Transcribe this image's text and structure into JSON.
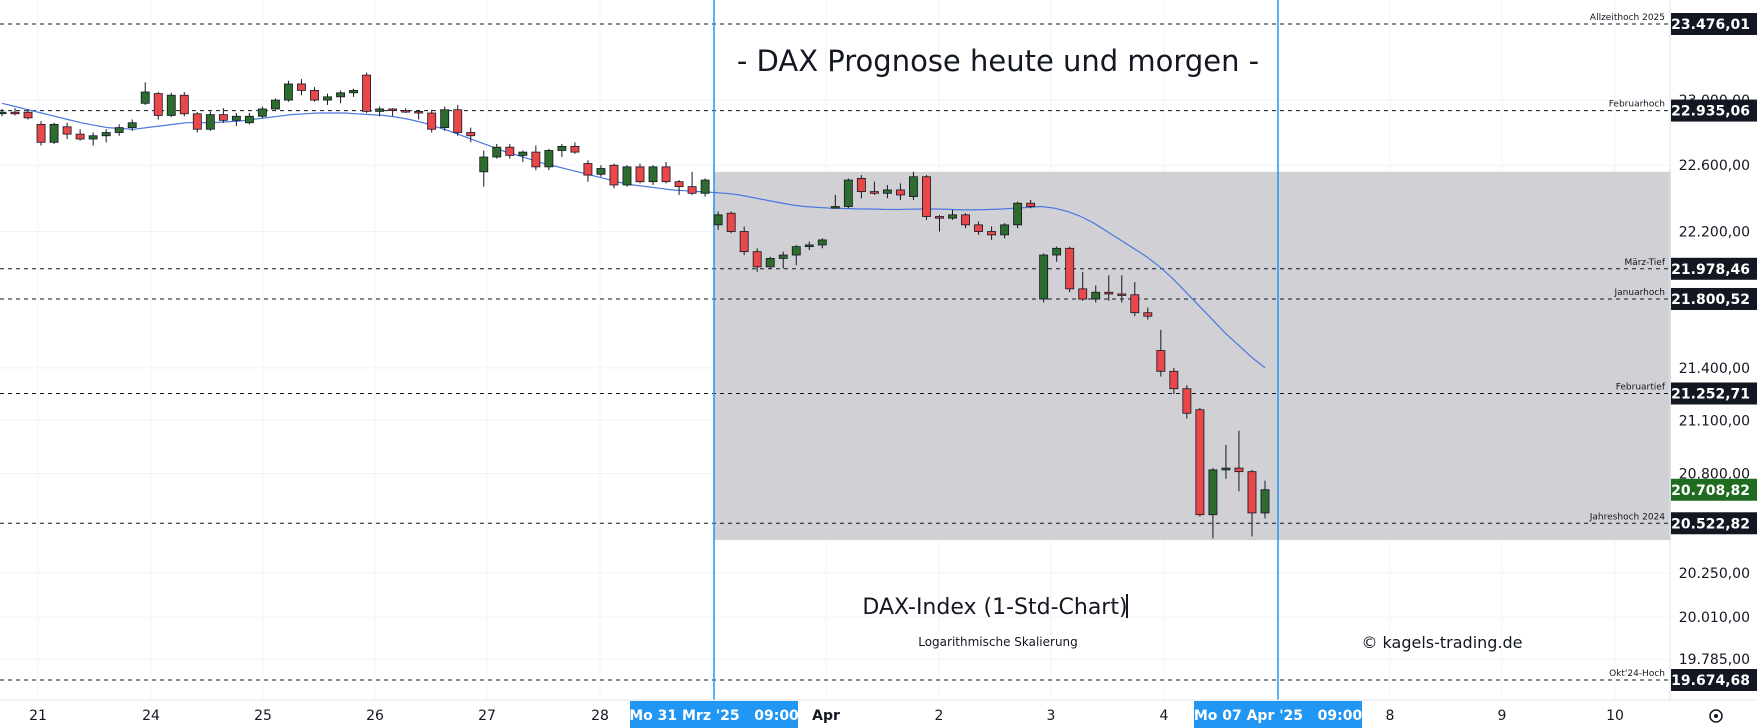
{
  "chart_data": {
    "type": "candlestick",
    "title": "- DAX Prognose heute und morgen -",
    "subtitle": "DAX-Index (1-Std-Chart)",
    "scale_note": "Logarithmische Skalierung",
    "credit": "© kagels-trading.de",
    "y_scale": "log",
    "ylim": [
      19550,
      23700
    ],
    "grid": true,
    "x_ticks": [
      "21",
      "24",
      "25",
      "26",
      "27",
      "28",
      "Apr",
      "2",
      "3",
      "4",
      "8",
      "9",
      "10"
    ],
    "date_markers": [
      {
        "label": "Mo 31 Mrz '25   09:00"
      },
      {
        "label": "Mo 07 Apr '25   09:00"
      }
    ],
    "y_ticks": [
      "23.000,00",
      "22.600,00",
      "22.200,00",
      "21.400,00",
      "21.100,00",
      "20.800,00",
      "20.250,00",
      "20.010,00",
      "19.785,00"
    ],
    "levels": [
      {
        "name": "Allzeithoch 2025",
        "value": 23476.01,
        "label": "23.476,01"
      },
      {
        "name": "Februarhoch",
        "value": 22935.06,
        "label": "22.935,06"
      },
      {
        "name": "März-Tief",
        "value": 21978.46,
        "label": "21.978,46"
      },
      {
        "name": "Januarhoch",
        "value": 21800.52,
        "label": "21.800,52"
      },
      {
        "name": "Februartief",
        "value": 21252.71,
        "label": "21.252,71"
      },
      {
        "name": "Jahreshoch 2024",
        "value": 20522.82,
        "label": "20.522,82"
      },
      {
        "name": "Okt'24-Hoch",
        "value": 19674.68,
        "label": "19.674,68"
      }
    ],
    "last_price": {
      "value": 20708.82,
      "label": "20.708,82"
    },
    "range_box": {
      "high": 22560,
      "low": 20430
    },
    "colors": {
      "up": "#2e6b2e",
      "down": "#e8484a",
      "ma": "#4a78e0",
      "box": "#d1d0d5",
      "marker": "#2196f3",
      "level": "#131722",
      "last": "#1f6b1f"
    },
    "candles": [
      {
        "o": 22920,
        "h": 22945,
        "l": 22900,
        "c": 22925
      },
      {
        "o": 22925,
        "h": 22950,
        "l": 22905,
        "c": 22915
      },
      {
        "o": 22925,
        "h": 22945,
        "l": 22880,
        "c": 22890
      },
      {
        "o": 22850,
        "h": 22870,
        "l": 22720,
        "c": 22740
      },
      {
        "o": 22740,
        "h": 22860,
        "l": 22730,
        "c": 22850
      },
      {
        "o": 22835,
        "h": 22860,
        "l": 22760,
        "c": 22790
      },
      {
        "o": 22790,
        "h": 22820,
        "l": 22750,
        "c": 22760
      },
      {
        "o": 22760,
        "h": 22800,
        "l": 22720,
        "c": 22780
      },
      {
        "o": 22780,
        "h": 22820,
        "l": 22740,
        "c": 22800
      },
      {
        "o": 22800,
        "h": 22850,
        "l": 22780,
        "c": 22830
      },
      {
        "o": 22830,
        "h": 22880,
        "l": 22810,
        "c": 22860
      },
      {
        "o": 22980,
        "h": 23110,
        "l": 22970,
        "c": 23050
      },
      {
        "o": 23040,
        "h": 23050,
        "l": 22880,
        "c": 22905
      },
      {
        "o": 22905,
        "h": 23045,
        "l": 22895,
        "c": 23030
      },
      {
        "o": 23030,
        "h": 23050,
        "l": 22900,
        "c": 22915
      },
      {
        "o": 22915,
        "h": 22925,
        "l": 22800,
        "c": 22820
      },
      {
        "o": 22820,
        "h": 22930,
        "l": 22810,
        "c": 22910
      },
      {
        "o": 22910,
        "h": 22950,
        "l": 22860,
        "c": 22875
      },
      {
        "o": 22875,
        "h": 22920,
        "l": 22840,
        "c": 22900
      },
      {
        "o": 22860,
        "h": 22920,
        "l": 22850,
        "c": 22900
      },
      {
        "o": 22900,
        "h": 22960,
        "l": 22890,
        "c": 22945
      },
      {
        "o": 22945,
        "h": 23010,
        "l": 22940,
        "c": 23000
      },
      {
        "o": 23000,
        "h": 23120,
        "l": 22990,
        "c": 23100
      },
      {
        "o": 23100,
        "h": 23130,
        "l": 23030,
        "c": 23060
      },
      {
        "o": 23060,
        "h": 23080,
        "l": 22990,
        "c": 23000
      },
      {
        "o": 23000,
        "h": 23040,
        "l": 22970,
        "c": 23020
      },
      {
        "o": 23020,
        "h": 23060,
        "l": 22980,
        "c": 23045
      },
      {
        "o": 23045,
        "h": 23070,
        "l": 23020,
        "c": 23060
      },
      {
        "o": 23155,
        "h": 23170,
        "l": 22920,
        "c": 22930
      },
      {
        "o": 22930,
        "h": 22960,
        "l": 22900,
        "c": 22945
      },
      {
        "o": 22945,
        "h": 22950,
        "l": 22900,
        "c": 22935
      },
      {
        "o": 22935,
        "h": 22950,
        "l": 22920,
        "c": 22930
      },
      {
        "o": 22930,
        "h": 22940,
        "l": 22880,
        "c": 22920
      },
      {
        "o": 22920,
        "h": 22940,
        "l": 22800,
        "c": 22820
      },
      {
        "o": 22830,
        "h": 22960,
        "l": 22810,
        "c": 22940
      },
      {
        "o": 22940,
        "h": 22970,
        "l": 22780,
        "c": 22800
      },
      {
        "o": 22800,
        "h": 22830,
        "l": 22740,
        "c": 22780
      },
      {
        "o": 22560,
        "h": 22690,
        "l": 22470,
        "c": 22650
      },
      {
        "o": 22650,
        "h": 22730,
        "l": 22640,
        "c": 22710
      },
      {
        "o": 22710,
        "h": 22730,
        "l": 22640,
        "c": 22660
      },
      {
        "o": 22660,
        "h": 22690,
        "l": 22620,
        "c": 22680
      },
      {
        "o": 22680,
        "h": 22720,
        "l": 22570,
        "c": 22590
      },
      {
        "o": 22590,
        "h": 22700,
        "l": 22570,
        "c": 22690
      },
      {
        "o": 22690,
        "h": 22730,
        "l": 22650,
        "c": 22715
      },
      {
        "o": 22715,
        "h": 22740,
        "l": 22670,
        "c": 22680
      },
      {
        "o": 22610,
        "h": 22630,
        "l": 22500,
        "c": 22540
      },
      {
        "o": 22545,
        "h": 22600,
        "l": 22530,
        "c": 22580
      },
      {
        "o": 22600,
        "h": 22610,
        "l": 22460,
        "c": 22480
      },
      {
        "o": 22480,
        "h": 22600,
        "l": 22470,
        "c": 22590
      },
      {
        "o": 22590,
        "h": 22610,
        "l": 22490,
        "c": 22500
      },
      {
        "o": 22500,
        "h": 22600,
        "l": 22480,
        "c": 22590
      },
      {
        "o": 22590,
        "h": 22620,
        "l": 22490,
        "c": 22500
      },
      {
        "o": 22500,
        "h": 22510,
        "l": 22420,
        "c": 22470
      },
      {
        "o": 22470,
        "h": 22560,
        "l": 22420,
        "c": 22430
      },
      {
        "o": 22430,
        "h": 22520,
        "l": 22410,
        "c": 22510
      },
      {
        "o": 22240,
        "h": 22320,
        "l": 22210,
        "c": 22300
      },
      {
        "o": 22310,
        "h": 22320,
        "l": 22190,
        "c": 22200
      },
      {
        "o": 22200,
        "h": 22230,
        "l": 22060,
        "c": 22080
      },
      {
        "o": 22080,
        "h": 22100,
        "l": 21960,
        "c": 21990
      },
      {
        "o": 21990,
        "h": 22050,
        "l": 21980,
        "c": 22040
      },
      {
        "o": 22040,
        "h": 22080,
        "l": 21980,
        "c": 22060
      },
      {
        "o": 22060,
        "h": 22120,
        "l": 22000,
        "c": 22110
      },
      {
        "o": 22110,
        "h": 22140,
        "l": 22090,
        "c": 22120
      },
      {
        "o": 22120,
        "h": 22160,
        "l": 22100,
        "c": 22150
      },
      {
        "o": 22350,
        "h": 22420,
        "l": 22340,
        "c": 22350
      },
      {
        "o": 22350,
        "h": 22520,
        "l": 22340,
        "c": 22510
      },
      {
        "o": 22520,
        "h": 22540,
        "l": 22400,
        "c": 22440
      },
      {
        "o": 22440,
        "h": 22500,
        "l": 22420,
        "c": 22430
      },
      {
        "o": 22430,
        "h": 22480,
        "l": 22400,
        "c": 22450
      },
      {
        "o": 22450,
        "h": 22490,
        "l": 22390,
        "c": 22420
      },
      {
        "o": 22410,
        "h": 22560,
        "l": 22390,
        "c": 22530
      },
      {
        "o": 22530,
        "h": 22540,
        "l": 22270,
        "c": 22290
      },
      {
        "o": 22290,
        "h": 22300,
        "l": 22200,
        "c": 22280
      },
      {
        "o": 22280,
        "h": 22330,
        "l": 22270,
        "c": 22300
      },
      {
        "o": 22300,
        "h": 22310,
        "l": 22220,
        "c": 22240
      },
      {
        "o": 22240,
        "h": 22260,
        "l": 22180,
        "c": 22200
      },
      {
        "o": 22200,
        "h": 22230,
        "l": 22150,
        "c": 22180
      },
      {
        "o": 22180,
        "h": 22250,
        "l": 22160,
        "c": 22240
      },
      {
        "o": 22240,
        "h": 22380,
        "l": 22220,
        "c": 22370
      },
      {
        "o": 22370,
        "h": 22390,
        "l": 22340,
        "c": 22350
      },
      {
        "o": 21800,
        "h": 22070,
        "l": 21780,
        "c": 22060
      },
      {
        "o": 22060,
        "h": 22110,
        "l": 22020,
        "c": 22100
      },
      {
        "o": 22100,
        "h": 22110,
        "l": 21840,
        "c": 21860
      },
      {
        "o": 21860,
        "h": 21960,
        "l": 21790,
        "c": 21800
      },
      {
        "o": 21800,
        "h": 21880,
        "l": 21780,
        "c": 21840
      },
      {
        "o": 21840,
        "h": 21940,
        "l": 21790,
        "c": 21830
      },
      {
        "o": 21830,
        "h": 21940,
        "l": 21780,
        "c": 21825
      },
      {
        "o": 21825,
        "h": 21900,
        "l": 21700,
        "c": 21720
      },
      {
        "o": 21720,
        "h": 21750,
        "l": 21680,
        "c": 21700
      },
      {
        "o": 21500,
        "h": 21620,
        "l": 21350,
        "c": 21380
      },
      {
        "o": 21380,
        "h": 21400,
        "l": 21250,
        "c": 21280
      },
      {
        "o": 21280,
        "h": 21300,
        "l": 21110,
        "c": 21140
      },
      {
        "o": 21160,
        "h": 21170,
        "l": 20560,
        "c": 20570
      },
      {
        "o": 20570,
        "h": 20830,
        "l": 20440,
        "c": 20820
      },
      {
        "o": 20820,
        "h": 20960,
        "l": 20770,
        "c": 20830
      },
      {
        "o": 20830,
        "h": 21040,
        "l": 20700,
        "c": 20810
      },
      {
        "o": 20810,
        "h": 20820,
        "l": 20450,
        "c": 20580
      },
      {
        "o": 20580,
        "h": 20760,
        "l": 20550,
        "c": 20708.82
      }
    ],
    "ma": [
      22980,
      22960,
      22940,
      22920,
      22900,
      22880,
      22860,
      22845,
      22830,
      22825,
      22820,
      22830,
      22840,
      22850,
      22860,
      22860,
      22860,
      22865,
      22870,
      22880,
      22890,
      22900,
      22910,
      22915,
      22920,
      22920,
      22920,
      22915,
      22910,
      22905,
      22895,
      22880,
      22860,
      22835,
      22810,
      22780,
      22750,
      22720,
      22690,
      22665,
      22640,
      22615,
      22595,
      22575,
      22555,
      22535,
      22515,
      22495,
      22480,
      22470,
      22460,
      22450,
      22445,
      22440,
      22435,
      22430,
      22420,
      22405,
      22390,
      22375,
      22360,
      22350,
      22345,
      22340,
      22338,
      22336,
      22335,
      22333,
      22332,
      22334,
      22335,
      22335,
      22333,
      22330,
      22330,
      22332,
      22335,
      22340,
      22345,
      22350,
      22340,
      22320,
      22290,
      22250,
      22200,
      22150,
      22100,
      22050,
      21990,
      21920,
      21840,
      21760,
      21680,
      21600,
      21530,
      21460,
      21400
    ]
  }
}
